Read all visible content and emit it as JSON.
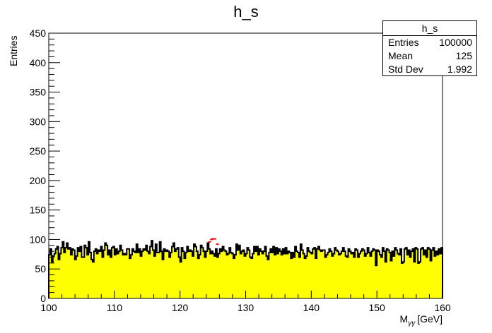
{
  "chart_data": {
    "type": "histogram",
    "title": "h_s",
    "xlabel_main": "M",
    "xlabel_sub": "γγ",
    "xlabel_unit": "[GeV]",
    "ylabel": "Entries",
    "xlim": [
      100,
      160
    ],
    "ylim": [
      0,
      450
    ],
    "x_ticks": [
      "100",
      "110",
      "120",
      "130",
      "140",
      "150",
      "160"
    ],
    "y_ticks": [
      "0",
      "50",
      "100",
      "150",
      "200",
      "250",
      "300",
      "350",
      "400",
      "450"
    ],
    "grid": false,
    "fill_color": "#ffff00",
    "line_color": "#000000",
    "bin_width": 0.4,
    "values": [
      74,
      84,
      62,
      72,
      76,
      84,
      88,
      66,
      76,
      86,
      96,
      78,
      86,
      94,
      84,
      86,
      74,
      84,
      82,
      66,
      72,
      86,
      80,
      88,
      70,
      70,
      90,
      86,
      74,
      96,
      78,
      66,
      62,
      80,
      84,
      76,
      82,
      80,
      88,
      70,
      82,
      94,
      90,
      74,
      82,
      70,
      86,
      88,
      74,
      84,
      76,
      80,
      90,
      82,
      74,
      76,
      74,
      84,
      84,
      68,
      74,
      84,
      80,
      78,
      92,
      78,
      84,
      72,
      80,
      84,
      82,
      90,
      80,
      76,
      88,
      98,
      82,
      72,
      92,
      78,
      78,
      96,
      80,
      66,
      84,
      80,
      82,
      80,
      70,
      78,
      88,
      94,
      80,
      84,
      86,
      70,
      62,
      86,
      80,
      68,
      78,
      88,
      80,
      82,
      80,
      72,
      92,
      88,
      80,
      68,
      74,
      90,
      86,
      80,
      70,
      80,
      94,
      84,
      76,
      80,
      76,
      72,
      84,
      70,
      76,
      84,
      80,
      88,
      82,
      80,
      74,
      76,
      86,
      78,
      76,
      68,
      74,
      92,
      82,
      90,
      76,
      80,
      82,
      72,
      76,
      86,
      82,
      70,
      68,
      76,
      88,
      80,
      88,
      74,
      84,
      80,
      76,
      80,
      88,
      72,
      66,
      78,
      84,
      78,
      88,
      74,
      86,
      76,
      84,
      80,
      74,
      84,
      76,
      86,
      76,
      80,
      78,
      68,
      78,
      70,
      88,
      80,
      78,
      70,
      92,
      82,
      76,
      68,
      72,
      86,
      80,
      78,
      76,
      84,
      86,
      68,
      84,
      88,
      82,
      80,
      82,
      82,
      70,
      74,
      78,
      84,
      80,
      72,
      76,
      86,
      82,
      80,
      74,
      76,
      80,
      86,
      80,
      72,
      70,
      84,
      80,
      76,
      78,
      70,
      84,
      82,
      70,
      76,
      80,
      84,
      82,
      72,
      76,
      86,
      78,
      72,
      80,
      84,
      82,
      56,
      82,
      80,
      74,
      70,
      86,
      80,
      62,
      84,
      82,
      78,
      64,
      80,
      72,
      86,
      82,
      76,
      74,
      84,
      60,
      62,
      84,
      86,
      74,
      82,
      70,
      80,
      84,
      62,
      86,
      84,
      60,
      62,
      84,
      86,
      74,
      82,
      70,
      86,
      84,
      64,
      82,
      86,
      72,
      80,
      74,
      84,
      76,
      86
    ],
    "signal_points": [
      {
        "x": 124.5,
        "y": 96
      },
      {
        "x": 124.8,
        "y": 100
      },
      {
        "x": 125.0,
        "y": 101
      },
      {
        "x": 125.3,
        "y": 101
      },
      {
        "x": 125.7,
        "y": 92
      }
    ],
    "signal_color": "#ee1111"
  },
  "stats": {
    "title": "h_s",
    "rows": [
      {
        "label": "Entries",
        "value": "100000"
      },
      {
        "label": "Mean",
        "value": "125"
      },
      {
        "label": "Std Dev",
        "value": "1.992"
      }
    ]
  }
}
